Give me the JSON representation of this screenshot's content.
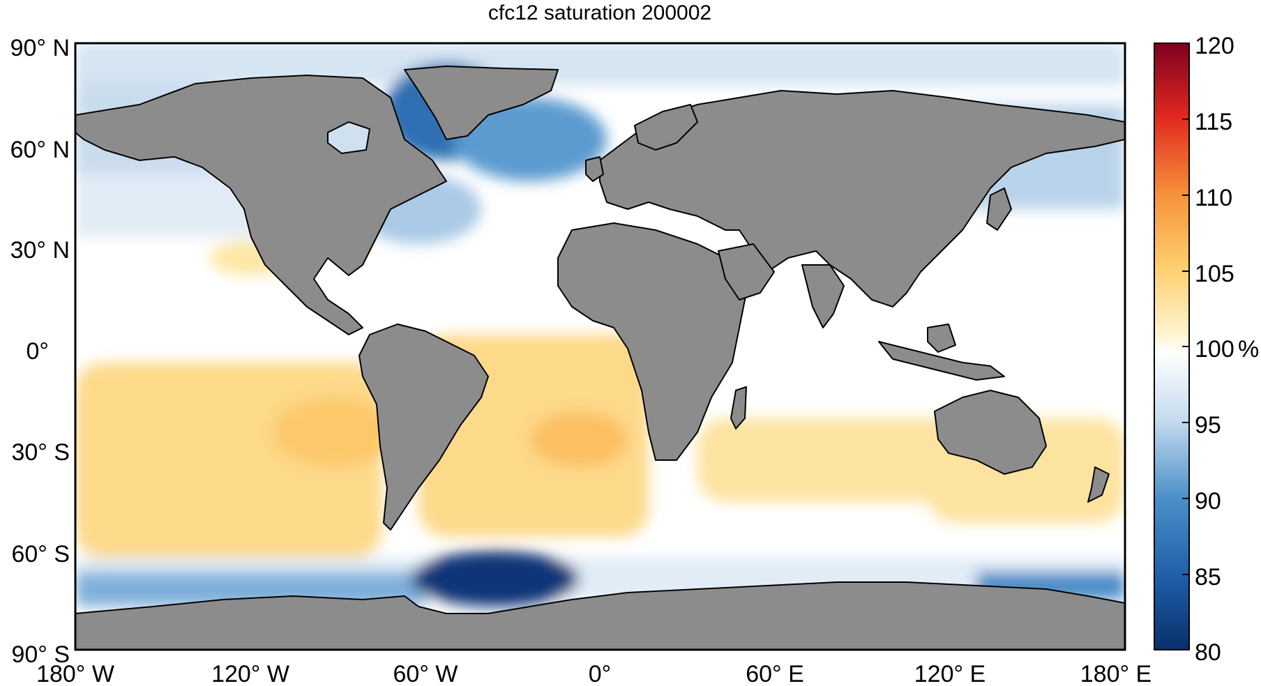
{
  "title": "cfc12 saturation 200002",
  "lat_ticks": [
    "90° N",
    "60° N",
    "30° N",
    "0°",
    "30° S",
    "60° S",
    "90° S"
  ],
  "lon_ticks": [
    "180° W",
    "120° W",
    "60° W",
    "0°",
    "60° E",
    "120° E",
    "180° E"
  ],
  "colorbar": {
    "tick_labels": [
      "120",
      "115",
      "110",
      "105",
      "100",
      "95",
      "90",
      "85",
      "80"
    ],
    "unit": "%",
    "min": 80,
    "max": 120,
    "colors": {
      "deep_red": "#7f0020",
      "red": "#d7191c",
      "orange": "#f47a2b",
      "yellow": "#fddc85",
      "white": "#ffffff",
      "light_blue": "#c6dbef",
      "blue": "#4a90c8",
      "deep_blue": "#08306b"
    }
  },
  "colors": {
    "land": "#8c8c8c",
    "coast": "#000000",
    "frame": "#000000"
  }
}
